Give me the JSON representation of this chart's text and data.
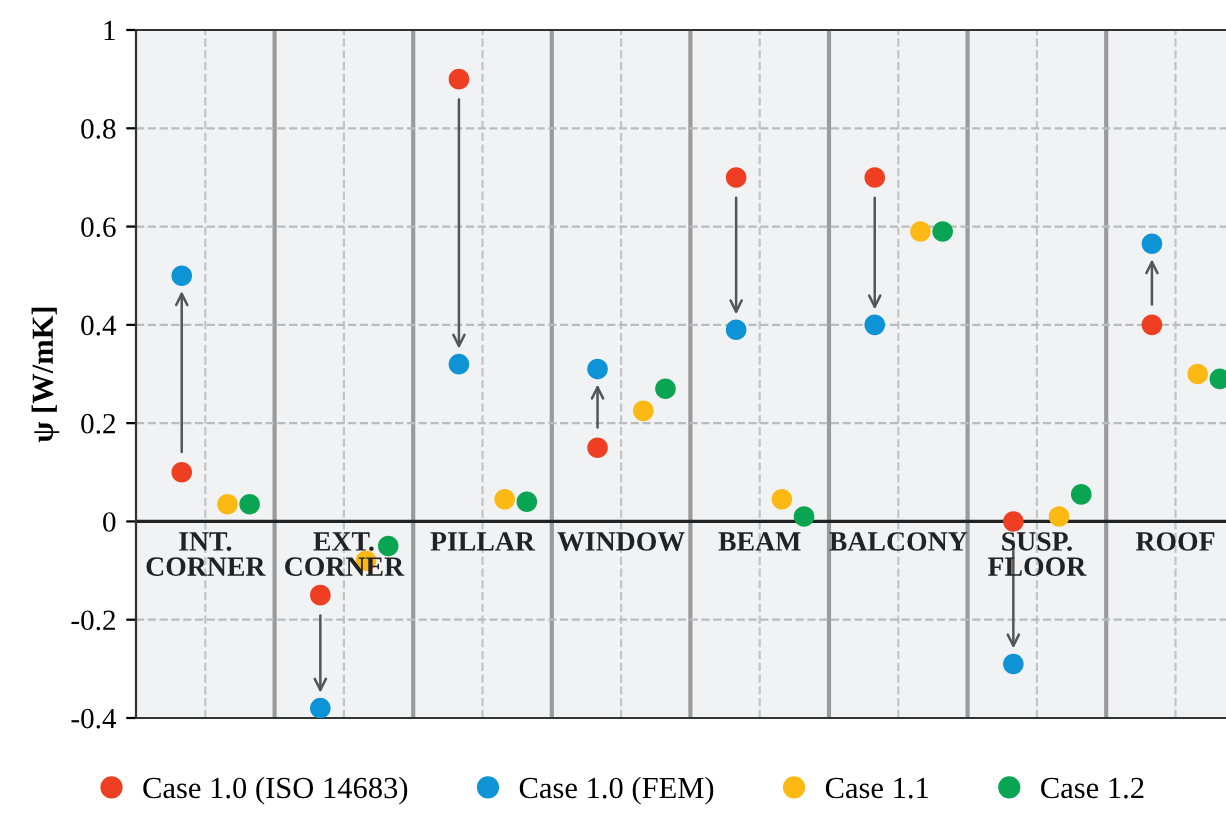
{
  "chart_data": {
    "type": "scatter",
    "ylabel": "ψ [W/mK]",
    "categories": [
      "INT.\nCORNER",
      "EXT.\nCORNER",
      "PILLAR",
      "WINDOW",
      "BEAM",
      "BALCONY",
      "SUSP.\nFLOOR",
      "ROOF"
    ],
    "series": [
      {
        "name": "Case 1.0 (ISO 14683)",
        "color": "#ee3f23",
        "values": [
          0.1,
          -0.15,
          0.9,
          0.15,
          0.7,
          0.7,
          0.0,
          0.4
        ]
      },
      {
        "name": "Case 1.0 (FEM)",
        "color": "#0f93d7",
        "values": [
          0.5,
          -0.38,
          0.32,
          0.31,
          0.39,
          0.4,
          -0.29,
          0.565
        ]
      },
      {
        "name": "Case 1.1",
        "color": "#fdb913",
        "values": [
          0.035,
          -0.08,
          0.045,
          0.225,
          0.045,
          0.59,
          0.01,
          0.3
        ]
      },
      {
        "name": "Case 1.2",
        "color": "#0aa552",
        "values": [
          0.035,
          -0.05,
          0.04,
          0.27,
          0.01,
          0.59,
          0.055,
          0.29
        ]
      }
    ],
    "ylim": [
      -0.4,
      1
    ],
    "yticks": [
      {
        "value": -0.4,
        "label": "-0.4"
      },
      {
        "value": -0.2,
        "label": "-0.2"
      },
      0,
      0.2,
      0.4,
      0.6,
      0.8,
      1
    ],
    "grid": true,
    "legend": "bottom",
    "marker": "circle"
  }
}
